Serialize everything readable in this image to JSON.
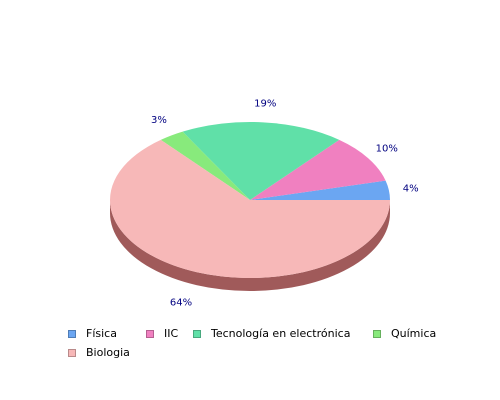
{
  "chart_data": {
    "type": "pie",
    "title": "",
    "categories": [
      "Física",
      "IIC",
      "Tecnología en electrónica",
      "Química",
      "Biologia"
    ],
    "values": [
      4,
      10,
      19,
      3,
      64
    ],
    "labels": [
      "4%",
      "10%",
      "19%",
      "3%",
      "64%"
    ],
    "colors": [
      "#6ba6f2",
      "#f080c0",
      "#60e0a8",
      "#88ea7c",
      "#f7b8b8"
    ],
    "side_color": "#a05a5a",
    "legend_position": "bottom"
  }
}
